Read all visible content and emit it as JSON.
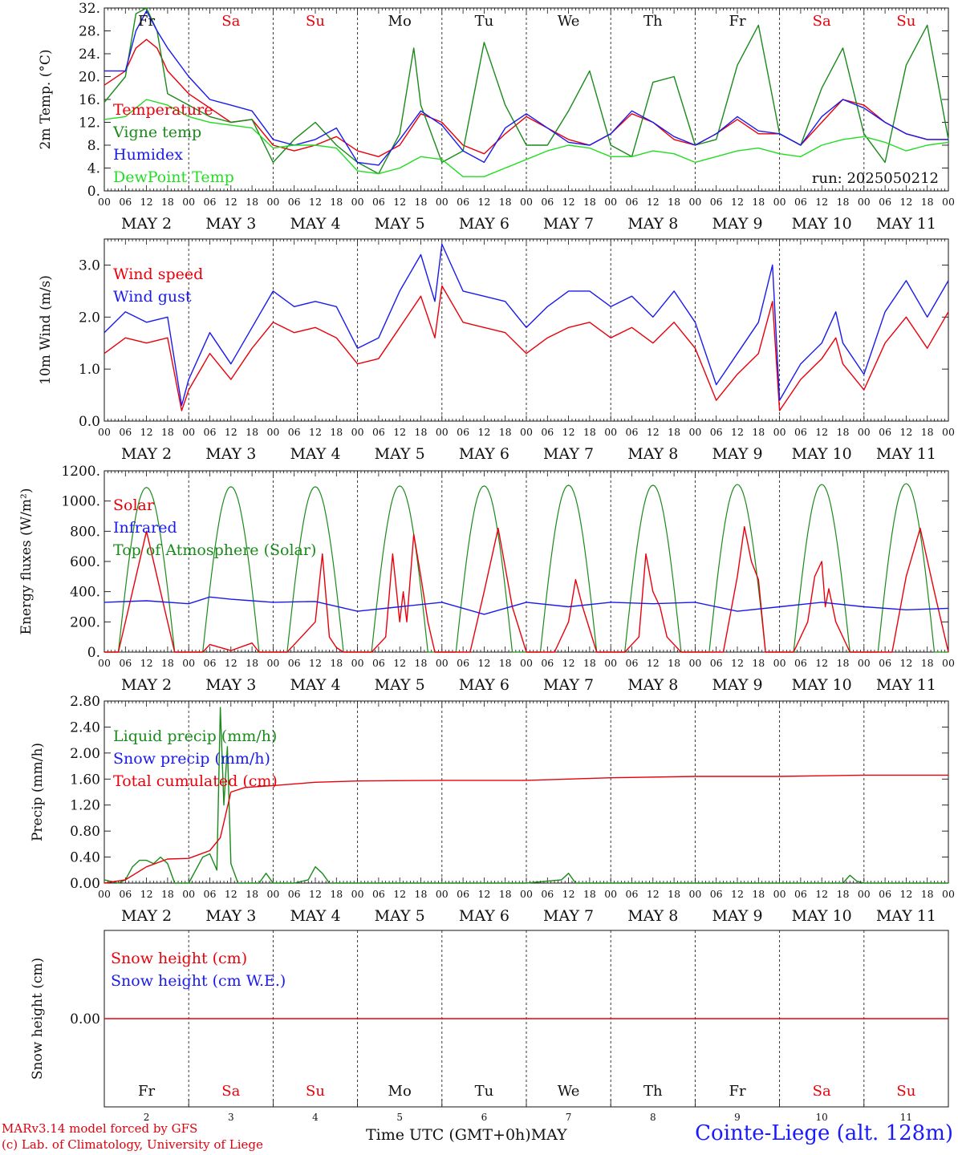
{
  "footer": {
    "credit_line1": "MARv3.14 model forced by GFS",
    "credit_line2": "(c) Lab. of Climatology, University of Liege",
    "x_axis_title": "Time UTC (GMT+0h)MAY",
    "station": "Cointe-Liege (alt. 128m)"
  },
  "colors": {
    "red": "#e8000b",
    "green": "#1a8a1a",
    "blue": "#1a1aee",
    "light_green": "#22dd22",
    "weekend": "#e8000b",
    "weekday": "#111111"
  },
  "chart_data": [
    {
      "type": "line",
      "id": "temperature",
      "ylabel": "2m Temp. (°C)",
      "ylim": [
        0,
        32
      ],
      "yticks": [
        "0.",
        "4.",
        "8.",
        "12.",
        "16.",
        "20.",
        "24.",
        "28.",
        "32."
      ],
      "run_label": "run: 2025050212",
      "days_top": [
        "Fr",
        "Sa",
        "Su",
        "Mo",
        "Tu",
        "We",
        "Th",
        "Fr",
        "Sa",
        "Su"
      ],
      "xtick_labels": [
        "00",
        "06",
        "12",
        "18"
      ],
      "date_labels": [
        "MAY  2",
        "MAY  3",
        "MAY  4",
        "MAY  5",
        "MAY  6",
        "MAY  7",
        "MAY  8",
        "MAY  9",
        "MAY 10",
        "MAY 11"
      ],
      "x_unit": "hours since May 2 00 UTC",
      "series": [
        {
          "name": "Temperature",
          "color": "red",
          "x": [
            0,
            6,
            9,
            12,
            15,
            18,
            24,
            30,
            36,
            42,
            48,
            54,
            60,
            66,
            72,
            78,
            84,
            90,
            96,
            102,
            108,
            114,
            120,
            126,
            132,
            138,
            144,
            150,
            156,
            162,
            168,
            174,
            180,
            186,
            192,
            198,
            204,
            210,
            216,
            222,
            228,
            234,
            240
          ],
          "y": [
            18.5,
            21,
            25,
            26.5,
            25,
            21,
            17,
            14.5,
            12,
            12.5,
            8,
            7,
            8,
            9.5,
            7,
            6,
            8,
            13.5,
            12,
            8,
            6.5,
            10,
            13,
            11,
            9,
            8,
            10,
            13.5,
            12,
            9,
            8,
            10,
            12.5,
            10,
            10,
            8,
            12,
            16,
            15,
            12,
            10,
            9,
            9
          ]
        },
        {
          "name": "Vigne temp",
          "color": "green",
          "x": [
            0,
            6,
            9,
            12,
            15,
            18,
            24,
            30,
            36,
            42,
            48,
            54,
            60,
            66,
            72,
            78,
            84,
            88,
            90,
            96,
            102,
            108,
            114,
            120,
            126,
            132,
            138,
            144,
            150,
            156,
            162,
            168,
            174,
            180,
            186,
            192,
            198,
            204,
            210,
            216,
            222,
            228,
            234,
            240
          ],
          "y": [
            15.5,
            20,
            31,
            32,
            28,
            17,
            15,
            13,
            12,
            12.5,
            5,
            9,
            12,
            8,
            5,
            3,
            10,
            25,
            15,
            5,
            7,
            26,
            15,
            8,
            8,
            14,
            21,
            8,
            6,
            19,
            20,
            8,
            9,
            22,
            29,
            10,
            8,
            18,
            25,
            10,
            5,
            22,
            29,
            9
          ]
        },
        {
          "name": "Humidex",
          "color": "blue",
          "x": [
            0,
            6,
            9,
            12,
            15,
            18,
            24,
            30,
            36,
            42,
            48,
            54,
            60,
            66,
            72,
            78,
            84,
            90,
            96,
            102,
            108,
            114,
            120,
            126,
            132,
            138,
            144,
            150,
            156,
            162,
            168,
            174,
            180,
            186,
            192,
            198,
            204,
            210,
            216,
            222,
            228,
            234,
            240
          ],
          "y": [
            21,
            21,
            28,
            31.5,
            28,
            25,
            20,
            16,
            15,
            14,
            9,
            8,
            9,
            11,
            5,
            4.5,
            9,
            14,
            11.5,
            7,
            5,
            11,
            13.5,
            11,
            8.5,
            8,
            10,
            14,
            12,
            9.5,
            8,
            10,
            13,
            10.5,
            10,
            8,
            13,
            16,
            14.5,
            12,
            10,
            9,
            9
          ]
        },
        {
          "name": "DewPoint Temp",
          "color": "light_green",
          "x": [
            0,
            6,
            12,
            18,
            24,
            30,
            36,
            42,
            48,
            54,
            60,
            66,
            72,
            78,
            84,
            90,
            96,
            102,
            108,
            114,
            120,
            126,
            132,
            138,
            144,
            150,
            156,
            162,
            168,
            174,
            180,
            186,
            192,
            198,
            204,
            210,
            216,
            222,
            228,
            234,
            240
          ],
          "y": [
            12.5,
            13,
            16,
            15,
            13,
            12,
            11.5,
            11,
            7.5,
            8,
            8,
            7.5,
            3.5,
            3,
            4,
            6,
            5.5,
            2.5,
            2.5,
            4,
            5.5,
            7,
            8,
            7.5,
            6,
            6,
            7,
            6.5,
            5,
            6,
            7,
            7.5,
            6.5,
            6,
            8,
            9,
            9.5,
            8.5,
            7,
            8,
            8.5
          ]
        }
      ]
    },
    {
      "type": "line",
      "id": "wind",
      "ylabel": "10m Wind (m/s)",
      "ylim": [
        0,
        3.5
      ],
      "yticks": [
        "0.0",
        "1.0",
        "2.0",
        "3.0"
      ],
      "xtick_labels": [
        "00",
        "06",
        "12",
        "18"
      ],
      "date_labels": [
        "MAY  2",
        "MAY  3",
        "MAY  4",
        "MAY  5",
        "MAY  6",
        "MAY  7",
        "MAY  8",
        "MAY  9",
        "MAY 10",
        "MAY 11"
      ],
      "x_unit": "hours since May 2 00 UTC",
      "series": [
        {
          "name": "Wind speed",
          "color": "red",
          "x": [
            0,
            6,
            12,
            18,
            22,
            24,
            30,
            36,
            42,
            48,
            54,
            60,
            66,
            72,
            78,
            84,
            90,
            94,
            96,
            102,
            108,
            114,
            120,
            126,
            132,
            138,
            144,
            150,
            156,
            162,
            168,
            174,
            180,
            186,
            190,
            192,
            198,
            204,
            208,
            210,
            216,
            222,
            228,
            234,
            240
          ],
          "y": [
            1.3,
            1.6,
            1.5,
            1.6,
            0.2,
            0.6,
            1.3,
            0.8,
            1.4,
            1.9,
            1.7,
            1.8,
            1.6,
            1.1,
            1.2,
            1.8,
            2.4,
            1.6,
            2.6,
            1.9,
            1.8,
            1.7,
            1.3,
            1.6,
            1.8,
            1.9,
            1.6,
            1.8,
            1.5,
            1.9,
            1.4,
            0.4,
            0.9,
            1.3,
            2.3,
            0.2,
            0.8,
            1.2,
            1.6,
            1.1,
            0.6,
            1.5,
            2.0,
            1.4,
            2.1
          ]
        },
        {
          "name": "Wind gust",
          "color": "blue",
          "x": [
            0,
            6,
            12,
            18,
            22,
            24,
            30,
            36,
            42,
            48,
            54,
            60,
            66,
            72,
            78,
            84,
            90,
            94,
            96,
            102,
            108,
            114,
            120,
            126,
            132,
            138,
            144,
            150,
            156,
            162,
            168,
            174,
            180,
            186,
            190,
            192,
            198,
            204,
            208,
            210,
            216,
            222,
            228,
            234,
            240
          ],
          "y": [
            1.7,
            2.1,
            1.9,
            2.0,
            0.3,
            0.8,
            1.7,
            1.1,
            1.8,
            2.5,
            2.2,
            2.3,
            2.2,
            1.4,
            1.6,
            2.5,
            3.2,
            2.3,
            3.4,
            2.5,
            2.4,
            2.3,
            1.8,
            2.2,
            2.5,
            2.5,
            2.2,
            2.4,
            2.0,
            2.5,
            1.9,
            0.7,
            1.3,
            1.9,
            3.0,
            0.4,
            1.1,
            1.5,
            2.1,
            1.5,
            0.9,
            2.1,
            2.7,
            2.0,
            2.7
          ]
        }
      ]
    },
    {
      "type": "line",
      "id": "energy",
      "ylabel": "Energy fluxes (W/m²)",
      "ylim": [
        0,
        1200
      ],
      "yticks": [
        "0.",
        "200.",
        "400.",
        "600.",
        "800.",
        "1000.",
        "1200."
      ],
      "xtick_labels": [
        "00",
        "06",
        "12",
        "18"
      ],
      "date_labels": [
        "MAY  2",
        "MAY  3",
        "MAY  4",
        "MAY  5",
        "MAY  6",
        "MAY  7",
        "MAY  8",
        "MAY  9",
        "MAY 10",
        "MAY 11"
      ],
      "x_unit": "hours since May 2 00 UTC",
      "toa_daily_peak": [
        1090,
        1095,
        1095,
        1100,
        1100,
        1105,
        1105,
        1110,
        1110,
        1115
      ],
      "series": [
        {
          "name": "Solar",
          "color": "red",
          "x": [
            0,
            4,
            8,
            12,
            16,
            20,
            24,
            28,
            30,
            36,
            42,
            44,
            48,
            52,
            56,
            60,
            62,
            64,
            66,
            68,
            72,
            76,
            80,
            82,
            84,
            85,
            86,
            88,
            90,
            92,
            94,
            96,
            100,
            104,
            108,
            112,
            116,
            120,
            124,
            128,
            132,
            134,
            136,
            140,
            144,
            148,
            152,
            154,
            156,
            158,
            160,
            164,
            168,
            172,
            176,
            180,
            182,
            184,
            186,
            188,
            192,
            196,
            200,
            202,
            204,
            205,
            206,
            208,
            212,
            216,
            220,
            224,
            228,
            232,
            236,
            240
          ],
          "y": [
            0,
            0,
            400,
            800,
            400,
            0,
            0,
            0,
            50,
            10,
            60,
            0,
            0,
            0,
            100,
            200,
            650,
            100,
            30,
            0,
            0,
            0,
            100,
            650,
            200,
            400,
            200,
            780,
            500,
            200,
            0,
            0,
            0,
            0,
            400,
            820,
            300,
            0,
            0,
            0,
            200,
            480,
            300,
            0,
            0,
            0,
            100,
            650,
            400,
            300,
            100,
            0,
            0,
            0,
            0,
            500,
            830,
            600,
            480,
            0,
            0,
            0,
            200,
            500,
            600,
            300,
            420,
            200,
            0,
            0,
            0,
            0,
            500,
            820,
            400,
            0
          ]
        },
        {
          "name": "Infrared",
          "color": "blue",
          "x": [
            0,
            12,
            24,
            30,
            36,
            42,
            48,
            60,
            72,
            84,
            96,
            108,
            120,
            132,
            144,
            156,
            168,
            180,
            192,
            204,
            216,
            228,
            240
          ],
          "y": [
            330,
            340,
            320,
            365,
            350,
            340,
            330,
            335,
            270,
            300,
            330,
            250,
            330,
            300,
            330,
            320,
            330,
            270,
            300,
            330,
            300,
            280,
            290
          ]
        },
        {
          "name": "Top of Atmosphere (Solar)",
          "color": "green"
        }
      ]
    },
    {
      "type": "line",
      "id": "precip",
      "ylabel": "Precip (mm/h)",
      "ylim": [
        0,
        2.8
      ],
      "yticks": [
        "0.00",
        "0.40",
        "0.80",
        "1.20",
        "1.60",
        "2.00",
        "2.40",
        "2.80"
      ],
      "xtick_labels": [
        "00",
        "06",
        "12",
        "18"
      ],
      "date_labels": [
        "MAY  2",
        "MAY  3",
        "MAY  4",
        "MAY  5",
        "MAY  6",
        "MAY  7",
        "MAY  8",
        "MAY  9",
        "MAY 10",
        "MAY 11"
      ],
      "x_unit": "hours since May 2 00 UTC",
      "series": [
        {
          "name": "Liquid precip (mm/h)",
          "color": "green",
          "x": [
            0,
            4,
            6,
            8,
            10,
            12,
            14,
            16,
            18,
            20,
            22,
            24,
            28,
            30,
            32,
            33,
            34,
            35,
            36,
            38,
            40,
            42,
            44,
            46,
            48,
            54,
            58,
            60,
            62,
            64,
            66,
            72,
            120,
            130,
            132,
            134,
            136,
            150,
            210,
            212,
            214,
            216,
            240
          ],
          "y": [
            0.05,
            0,
            0.05,
            0.25,
            0.35,
            0.35,
            0.3,
            0.4,
            0.3,
            0,
            0,
            0,
            0.4,
            0.45,
            0.2,
            2.7,
            1.2,
            2.1,
            0.3,
            0,
            0,
            0,
            0,
            0.15,
            0,
            0,
            0.05,
            0.25,
            0.15,
            0,
            0,
            0,
            0,
            0.05,
            0.15,
            0,
            0,
            0,
            0,
            0.12,
            0.03,
            0,
            0
          ]
        },
        {
          "name": "Snow precip (mm/h)",
          "color": "blue"
        },
        {
          "name": "Total cumulated (cm)",
          "color": "red",
          "x": [
            0,
            6,
            12,
            18,
            24,
            30,
            33,
            36,
            40,
            48,
            60,
            72,
            96,
            120,
            132,
            144,
            168,
            192,
            216,
            240
          ],
          "y": [
            0,
            0.05,
            0.25,
            0.37,
            0.38,
            0.5,
            0.7,
            1.4,
            1.47,
            1.5,
            1.55,
            1.57,
            1.58,
            1.58,
            1.6,
            1.62,
            1.64,
            1.64,
            1.66,
            1.66
          ]
        }
      ]
    },
    {
      "type": "line",
      "id": "snow",
      "ylabel": "Snow height (cm)",
      "yticks": [
        "0.00"
      ],
      "days_bottom": [
        "Fr",
        "Sa",
        "Su",
        "Mo",
        "Tu",
        "We",
        "Th",
        "Fr",
        "Sa",
        "Su"
      ],
      "day_numbers": [
        "2",
        "3",
        "4",
        "5",
        "6",
        "7",
        "8",
        "9",
        "10",
        "11"
      ],
      "series": [
        {
          "name": "Snow height (cm)",
          "color": "red",
          "x": [
            0,
            240
          ],
          "y": [
            0,
            0
          ]
        },
        {
          "name": "Snow height (cm W.E.)",
          "color": "blue"
        }
      ]
    }
  ]
}
